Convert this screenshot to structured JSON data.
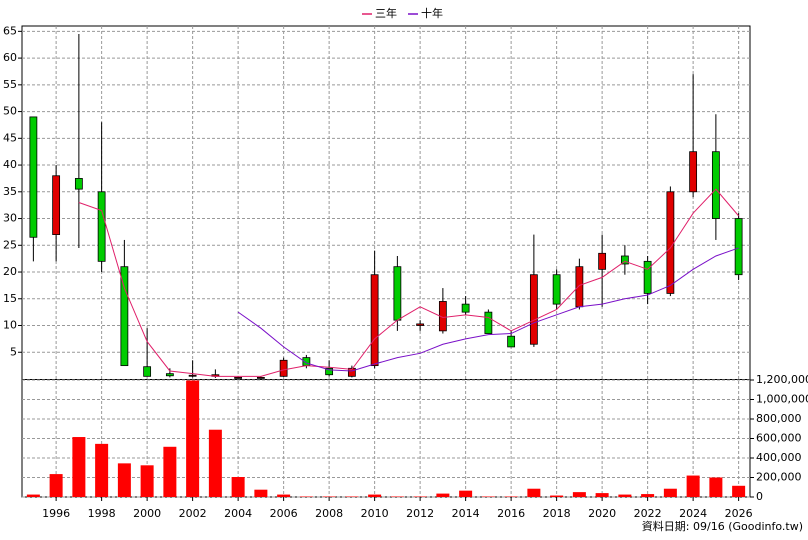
{
  "chart_data": [
    {
      "type": "candlestick",
      "open": [
        49,
        27,
        37.5,
        35,
        21,
        2.3,
        1,
        0.6,
        0.5,
        0.3,
        0.3,
        0.5,
        4,
        2,
        0.5,
        2.5,
        21,
        10,
        9,
        14,
        12.5,
        8,
        6.5,
        19.5,
        13.5,
        20.5,
        23,
        22,
        16,
        35,
        42.5,
        30
      ],
      "close": [
        26.5,
        38,
        35.5,
        22,
        2.5,
        0.5,
        0.6,
        0.7,
        0.8,
        0.3,
        0.3,
        3.5,
        2.5,
        0.8,
        2,
        19.5,
        11,
        10.3,
        14.5,
        12.5,
        8.5,
        6,
        19.5,
        14,
        21,
        23.5,
        21.5,
        16,
        35,
        42.5,
        30,
        19.5
      ],
      "high": [
        49,
        40,
        64.5,
        48,
        26,
        9.5,
        2,
        3.5,
        1.8,
        0.5,
        0.5,
        4,
        4.5,
        3.5,
        2.5,
        24,
        23,
        11,
        17,
        15.5,
        13,
        9,
        27,
        20.5,
        22.5,
        27,
        25,
        23,
        36,
        57,
        49.5,
        31
      ],
      "low": [
        22,
        22,
        24.5,
        20,
        2.5,
        0.5,
        0.3,
        0.3,
        0.2,
        0.2,
        0.2,
        0.4,
        2,
        0.5,
        0.3,
        2,
        9,
        9,
        8.5,
        12,
        8.5,
        6,
        6,
        13,
        13,
        13.5,
        19.5,
        14,
        15.5,
        34,
        26,
        18.5
      ],
      "up_color": "#e00000",
      "down_color": "#00cc00",
      "series": [
        {
          "name": "三年",
          "color": "#e0206a",
          "values": [
            null,
            null,
            33,
            31.5,
            17,
            7,
            1.5,
            1,
            0.5,
            0.5,
            0.5,
            1.7,
            2.5,
            2.2,
            1.8,
            7.5,
            11,
            13.5,
            11.5,
            12,
            11.5,
            9,
            11,
            13,
            17.5,
            19,
            22,
            20.5,
            24.5,
            31,
            35.5,
            30.5
          ]
        },
        {
          "name": "十年",
          "color": "#7a10c8",
          "values": [
            null,
            null,
            null,
            null,
            null,
            null,
            null,
            null,
            null,
            12.5,
            9.5,
            6,
            3,
            1.7,
            1.5,
            2.8,
            4,
            4.8,
            6.5,
            7.5,
            8.3,
            8.5,
            10.5,
            12,
            13.5,
            14,
            15,
            15.7,
            17.5,
            20.5,
            23,
            24.5
          ]
        }
      ],
      "ylim": [
        0,
        66
      ],
      "yticks": [
        5,
        10,
        15,
        20,
        25,
        30,
        35,
        40,
        45,
        50,
        55,
        60,
        65
      ],
      "grid": true
    },
    {
      "type": "bar",
      "categories": [
        null,
        "1996",
        null,
        "1998",
        null,
        "2000",
        null,
        "2002",
        null,
        "2004",
        null,
        "2006",
        null,
        "2008",
        null,
        "2010",
        null,
        "2012",
        null,
        "2014",
        null,
        "2016",
        null,
        "2018",
        null,
        "2020",
        null,
        "2022",
        null,
        "2024",
        null,
        "2026"
      ],
      "values": [
        25000,
        235000,
        615000,
        545000,
        345000,
        325000,
        515000,
        1195000,
        690000,
        205000,
        75000,
        25000,
        5000,
        5000,
        5000,
        25000,
        5000,
        5000,
        35000,
        65000,
        5000,
        5000,
        85000,
        15000,
        50000,
        40000,
        25000,
        30000,
        85000,
        220000,
        200000,
        115000
      ],
      "color": "#ff0000",
      "ylim": [
        0,
        1200000
      ],
      "yticks": [
        0,
        {
          "value": 200000,
          "label": "200,000"
        },
        {
          "value": 400000,
          "label": "400,000"
        },
        {
          "value": 600000,
          "label": "600,000"
        },
        {
          "value": 800000,
          "label": "800,000"
        },
        {
          "value": 1000000,
          "label": "1,000,000"
        },
        {
          "value": 1200000,
          "label": "1,200,000"
        }
      ],
      "grid": true
    }
  ],
  "footer": "資料日期: 09/16 (Goodinfo.tw)"
}
